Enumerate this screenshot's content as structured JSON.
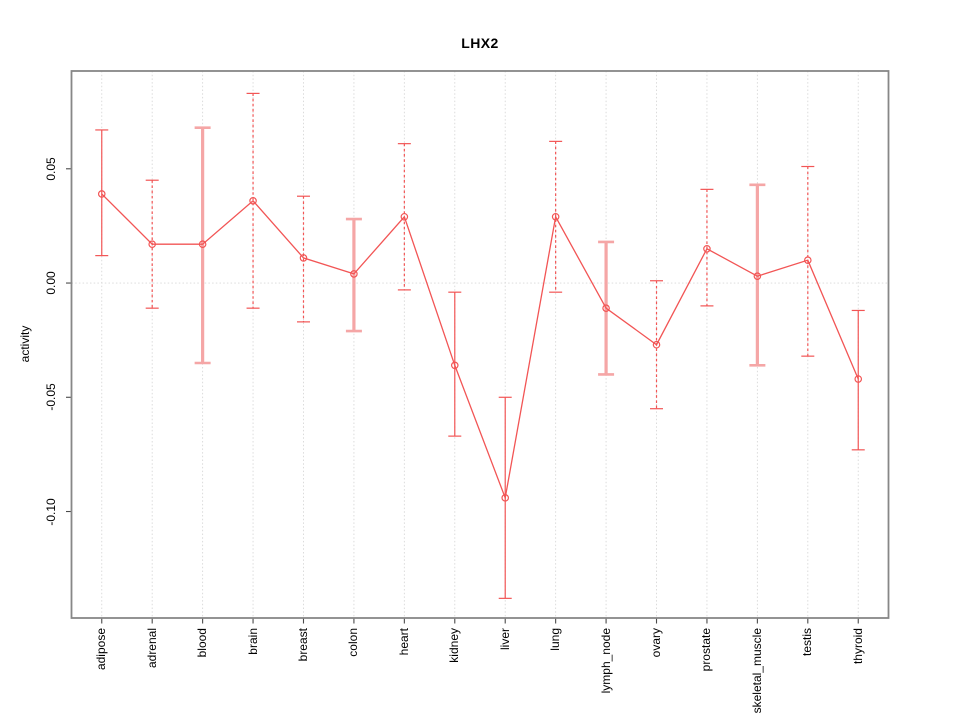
{
  "title": "LHX2",
  "chart_data": {
    "type": "line",
    "title": "LHX2",
    "xlabel": "",
    "ylabel": "activity",
    "categories": [
      "adipose",
      "adrenal",
      "blood",
      "brain",
      "breast",
      "colon",
      "heart",
      "kidney",
      "liver",
      "lung",
      "lymph_node",
      "ovary",
      "prostate",
      "skeletal_muscle",
      "testis",
      "thyroid"
    ],
    "series": [
      {
        "name": "activity",
        "values": [
          0.039,
          0.017,
          0.017,
          0.036,
          0.011,
          0.004,
          0.029,
          -0.036,
          -0.094,
          0.029,
          -0.011,
          -0.027,
          0.015,
          0.003,
          0.01,
          -0.042
        ],
        "lower": [
          0.012,
          -0.011,
          -0.035,
          -0.011,
          -0.017,
          -0.021,
          -0.003,
          -0.067,
          -0.138,
          -0.004,
          -0.04,
          -0.055,
          -0.01,
          -0.036,
          -0.032,
          -0.073
        ],
        "upper": [
          0.067,
          0.045,
          0.068,
          0.083,
          0.038,
          0.028,
          0.061,
          -0.004,
          -0.05,
          0.062,
          0.018,
          0.001,
          0.041,
          0.043,
          0.051,
          -0.012
        ]
      }
    ],
    "bar_styles": [
      "solid",
      "dashed",
      "thick",
      "dashed",
      "dashed",
      "thick",
      "dashed",
      "solid",
      "solid",
      "dashed",
      "thick",
      "dashed",
      "dashed",
      "thick",
      "dashed",
      "solid"
    ],
    "ylim": [
      -0.1466,
      0.0928
    ],
    "yticks": [
      0.05,
      0.0,
      -0.05,
      -0.1
    ],
    "ytick_labels": [
      "0.05",
      "0.00",
      "-0.05",
      "-0.10"
    ],
    "legend": "none",
    "grid": "vertical dotted gridline per category; horizontal dotted line at 0",
    "marker": "open-circle",
    "colors": {
      "series": "#f25555",
      "error_bar_thick": "#f5a6a6",
      "grid": "#d8d8d8",
      "box": "#878787",
      "tick": "#4a4a4a",
      "text": "#000000"
    }
  }
}
